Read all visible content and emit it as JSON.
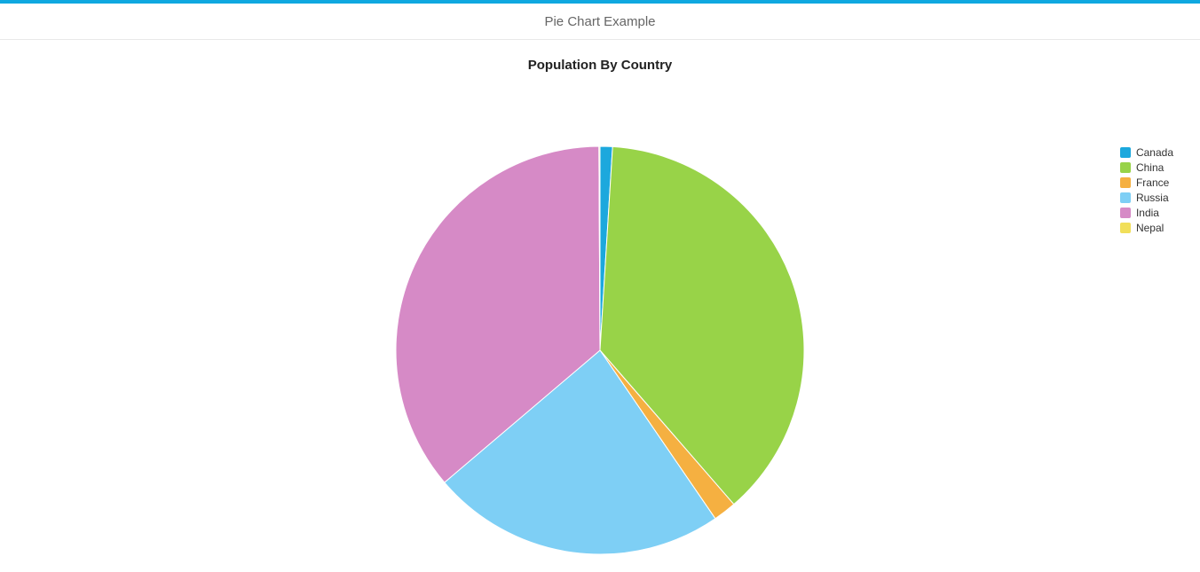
{
  "header": {
    "title": "Pie Chart Example",
    "accent_color": "#0fa8e0",
    "border_color": "#e8e8e8"
  },
  "chart": {
    "type": "pie",
    "title": "Population By Country",
    "title_fontsize": 15,
    "title_color": "#222222",
    "background_color": "#ffffff",
    "radius": 230,
    "start_angle_deg": -90,
    "series": [
      {
        "label": "Canada",
        "value": 36,
        "color": "#1ca8dd"
      },
      {
        "label": "China",
        "value": 1379,
        "color": "#98d348"
      },
      {
        "label": "France",
        "value": 67,
        "color": "#f5b041"
      },
      {
        "label": "Russia",
        "value": 855,
        "color": "#7ecff5"
      },
      {
        "label": "India",
        "value": 1324,
        "color": "#d68ac6"
      },
      {
        "label": "Nepal",
        "value": 3,
        "color": "#f1df5a"
      }
    ],
    "legend": {
      "position": "right",
      "fontsize": 12,
      "text_color": "#333333",
      "swatch_size": 12
    }
  }
}
